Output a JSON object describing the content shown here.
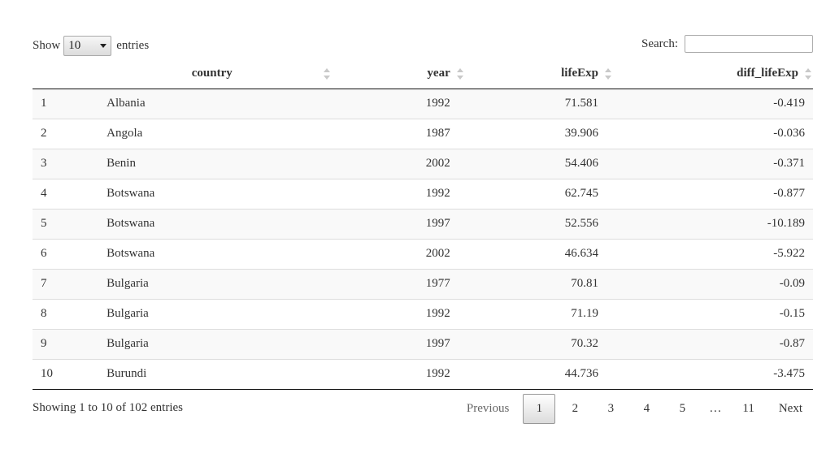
{
  "length": {
    "show_label": "Show",
    "selected": "10",
    "entries_label": "entries"
  },
  "search": {
    "label": "Search:",
    "value": "",
    "placeholder": ""
  },
  "table": {
    "columns": [
      "",
      "country",
      "year",
      "lifeExp",
      "diff_lifeExp"
    ],
    "rows": [
      [
        "1",
        "Albania",
        "1992",
        "71.581",
        "-0.419"
      ],
      [
        "2",
        "Angola",
        "1987",
        "39.906",
        "-0.036"
      ],
      [
        "3",
        "Benin",
        "2002",
        "54.406",
        "-0.371"
      ],
      [
        "4",
        "Botswana",
        "1992",
        "62.745",
        "-0.877"
      ],
      [
        "5",
        "Botswana",
        "1997",
        "52.556",
        "-10.189"
      ],
      [
        "6",
        "Botswana",
        "2002",
        "46.634",
        "-5.922"
      ],
      [
        "7",
        "Bulgaria",
        "1977",
        "70.81",
        "-0.09"
      ],
      [
        "8",
        "Bulgaria",
        "1992",
        "71.19",
        "-0.15"
      ],
      [
        "9",
        "Bulgaria",
        "1997",
        "70.32",
        "-0.87"
      ],
      [
        "10",
        "Burundi",
        "1992",
        "44.736",
        "-3.475"
      ]
    ]
  },
  "info": "Showing 1 to 10 of 102 entries",
  "pagination": {
    "previous": "Previous",
    "pages": [
      "1",
      "2",
      "3",
      "4",
      "5"
    ],
    "ellipsis": "…",
    "last": "11",
    "next": "Next",
    "current": "1"
  },
  "icons": {
    "sort": "sort-both-icon",
    "dropdown": "chevron-down-icon"
  },
  "colors": {
    "text": "#333333",
    "row_stripe": "#f9f9f9",
    "border_dark": "#111111",
    "border_light": "#dddddd",
    "sort_icon": "#c9c9c9"
  }
}
